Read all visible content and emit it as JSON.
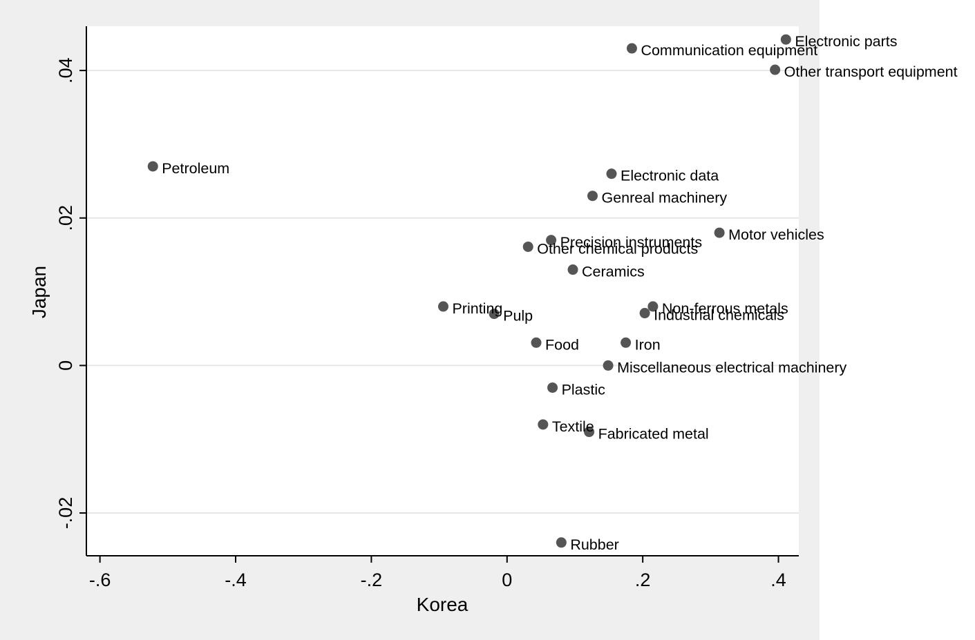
{
  "chart_data": {
    "type": "scatter",
    "xlabel": "Korea",
    "ylabel": "Japan",
    "xlim": [
      -0.62,
      0.43
    ],
    "ylim": [
      -0.0258,
      0.046
    ],
    "x_ticks": [
      -0.6,
      -0.4,
      -0.2,
      0,
      0.2,
      0.4
    ],
    "x_tick_labels": [
      "-.6",
      "-.4",
      "-.2",
      "0",
      ".2",
      ".4"
    ],
    "y_ticks": [
      -0.02,
      0,
      0.02,
      0.04
    ],
    "y_tick_labels": [
      "-.02",
      "0",
      ".02",
      ".04"
    ],
    "grid": "horizontal",
    "legend": "none",
    "colors": {
      "outer_background": "#efefef",
      "plot_background": "#ffffff",
      "marker": "#555555",
      "gridline": "#e6e6e6",
      "axis": "#000000"
    },
    "points": [
      {
        "label": "Electronic parts",
        "x": 0.411,
        "y": 0.0442
      },
      {
        "label": "Communication equipment",
        "x": 0.184,
        "y": 0.043
      },
      {
        "label": "Other transport equipment",
        "x": 0.395,
        "y": 0.0401
      },
      {
        "label": "Petroleum",
        "x": -0.522,
        "y": 0.027
      },
      {
        "label": "Electronic data",
        "x": 0.154,
        "y": 0.026
      },
      {
        "label": "Genreal machinery",
        "x": 0.126,
        "y": 0.023
      },
      {
        "label": "Motor vehicles",
        "x": 0.313,
        "y": 0.018
      },
      {
        "label": "Precision instruments",
        "x": 0.065,
        "y": 0.017
      },
      {
        "label": "Other chemical products",
        "x": 0.031,
        "y": 0.0161
      },
      {
        "label": "Ceramics",
        "x": 0.097,
        "y": 0.013
      },
      {
        "label": "Printing",
        "x": -0.094,
        "y": 0.008
      },
      {
        "label": "Non-ferrous metals",
        "x": 0.215,
        "y": 0.008
      },
      {
        "label": "Pulp",
        "x": -0.019,
        "y": 0.007
      },
      {
        "label": "Industrial chemicals",
        "x": 0.203,
        "y": 0.0071
      },
      {
        "label": "Food",
        "x": 0.043,
        "y": 0.0031
      },
      {
        "label": "Iron",
        "x": 0.175,
        "y": 0.0031
      },
      {
        "label": "Miscellaneous electrical machinery",
        "x": 0.149,
        "y": 0.0
      },
      {
        "label": "Plastic",
        "x": 0.067,
        "y": -0.003
      },
      {
        "label": "Textile",
        "x": 0.053,
        "y": -0.008
      },
      {
        "label": "Fabricated metal",
        "x": 0.121,
        "y": -0.009
      },
      {
        "label": "Rubber",
        "x": 0.08,
        "y": -0.024
      }
    ]
  }
}
